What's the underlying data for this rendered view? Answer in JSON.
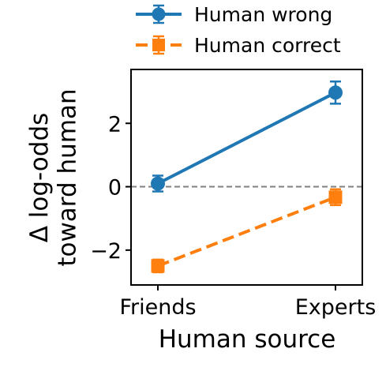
{
  "chart_data": {
    "type": "line",
    "title": "",
    "xlabel": "Human source",
    "ylabel": "Δ log-odds\ntoward human",
    "categories": [
      "Friends",
      "Experts"
    ],
    "ylim": [
      -3.1,
      3.7
    ],
    "yticks": [
      -2,
      0,
      2
    ],
    "ytick_labels": [
      "−2",
      "0",
      "2"
    ],
    "reference_line": 0,
    "grid": false,
    "legend_position": "top",
    "series": [
      {
        "name": "Human wrong",
        "values": [
          0.1,
          2.97
        ],
        "errors": [
          0.25,
          0.35
        ],
        "color": "#1f77b4",
        "marker": "circle",
        "line_style": "solid"
      },
      {
        "name": "Human correct",
        "values": [
          -2.5,
          -0.33
        ],
        "errors": [
          0.2,
          0.25
        ],
        "color": "#ff7f0e",
        "marker": "square",
        "line_style": "dashed"
      }
    ]
  }
}
